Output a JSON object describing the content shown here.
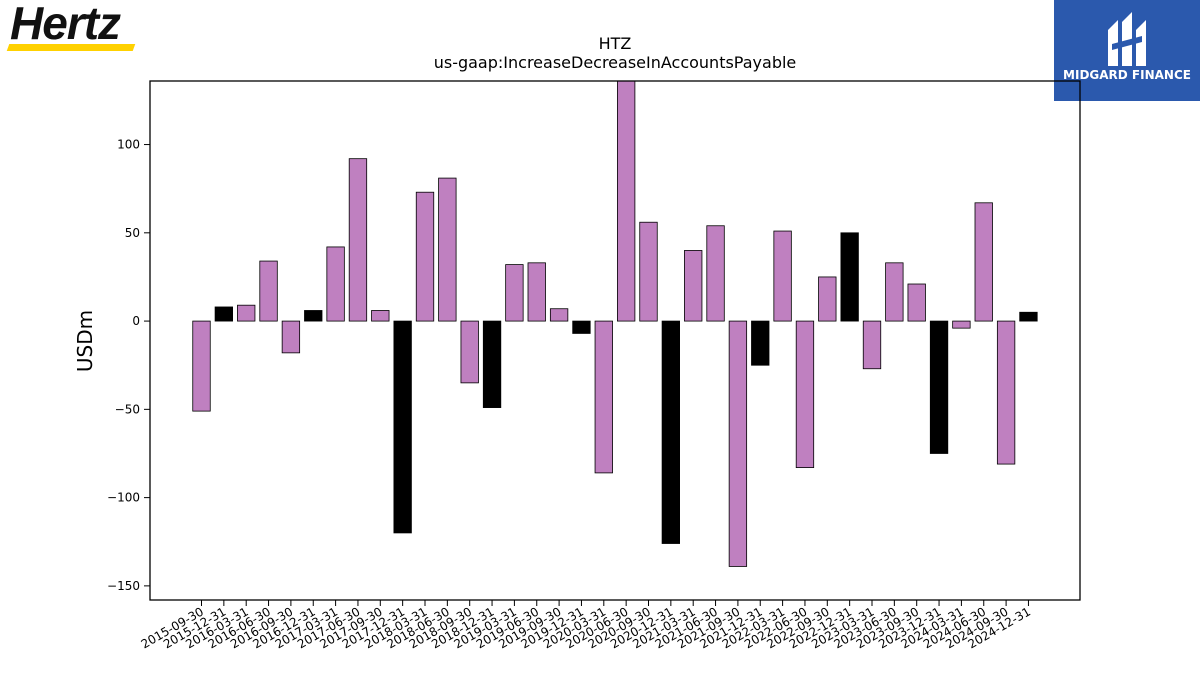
{
  "logos": {
    "left": "Hertz",
    "right": "MIDGARD FINANCE"
  },
  "colors": {
    "positive_bar": "#bf80c0",
    "negative_quarter_bar": "#000000"
  },
  "chart_data": {
    "type": "bar",
    "title": "HTZ",
    "subtitle": "us-gaap:IncreaseDecreaseInAccountsPayable",
    "xlabel": "",
    "ylabel": "USDm",
    "ylim": [
      -158,
      136
    ],
    "yticks": [
      -150,
      -100,
      -50,
      0,
      50,
      100
    ],
    "grid": false,
    "categories": [
      "2015-09-30",
      "2015-12-31",
      "2016-03-31",
      "2016-06-30",
      "2016-09-30",
      "2016-12-31",
      "2017-03-31",
      "2017-06-30",
      "2017-09-30",
      "2017-12-31",
      "2018-03-31",
      "2018-06-30",
      "2018-09-30",
      "2018-12-31",
      "2019-03-31",
      "2019-06-30",
      "2019-09-30",
      "2019-12-31",
      "2020-03-31",
      "2020-06-30",
      "2020-09-30",
      "2020-12-31",
      "2021-03-31",
      "2021-06-30",
      "2021-09-30",
      "2021-12-31",
      "2022-03-31",
      "2022-06-30",
      "2022-09-30",
      "2022-12-31",
      "2023-03-31",
      "2023-06-30",
      "2023-09-30",
      "2023-12-31",
      "2024-03-31",
      "2024-06-30",
      "2024-09-30",
      "2024-12-31"
    ],
    "values": [
      -51,
      8,
      9,
      34,
      -18,
      6,
      42,
      92,
      6,
      -120,
      73,
      81,
      -35,
      -49,
      32,
      33,
      7,
      -7,
      -86,
      137,
      56,
      -126,
      40,
      54,
      -139,
      -25,
      51,
      -83,
      25,
      50,
      -27,
      33,
      21,
      -75,
      -4,
      67,
      -81,
      5
    ],
    "bar_colors": [
      "#bf80c0",
      "#000000",
      "#bf80c0",
      "#bf80c0",
      "#bf80c0",
      "#000000",
      "#bf80c0",
      "#bf80c0",
      "#bf80c0",
      "#000000",
      "#bf80c0",
      "#bf80c0",
      "#bf80c0",
      "#000000",
      "#bf80c0",
      "#bf80c0",
      "#bf80c0",
      "#000000",
      "#bf80c0",
      "#bf80c0",
      "#bf80c0",
      "#000000",
      "#bf80c0",
      "#bf80c0",
      "#bf80c0",
      "#000000",
      "#bf80c0",
      "#bf80c0",
      "#bf80c0",
      "#000000",
      "#bf80c0",
      "#bf80c0",
      "#bf80c0",
      "#000000",
      "#bf80c0",
      "#bf80c0",
      "#bf80c0",
      "#000000"
    ]
  }
}
